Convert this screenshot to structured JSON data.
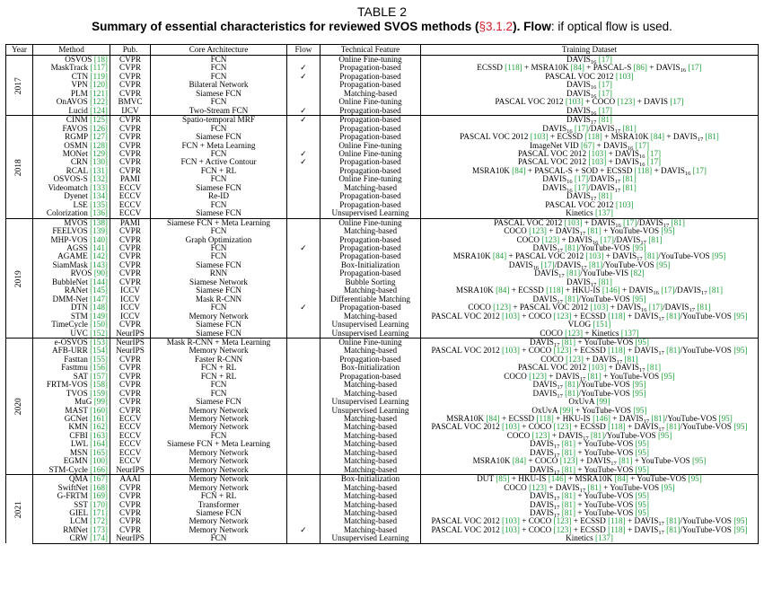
{
  "caption": {
    "table_label": "TABLE 2",
    "title_main": "Summary of essential characteristics for reviewed SVOS methods (",
    "title_ref": "§3.1.2",
    "title_end": "). ",
    "flow_label": "Flow",
    "flow_desc": ": if optical flow is used."
  },
  "headers": [
    "Year",
    "Method",
    "Pub.",
    "Core Architecture",
    "Flow",
    "Technical Feature",
    "Training Dataset"
  ],
  "groups": [
    {
      "year": "2017",
      "rows": [
        [
          "OSVOS",
          "[18]",
          "CVPR",
          "FCN",
          "",
          "Online Fine-tuning",
          "DAVIS_16 [17]"
        ],
        [
          "MaskTrack",
          "[117]",
          "CVPR",
          "FCN",
          "✓",
          "Propagation-based",
          "ECSSD [118] + MSRA10K [84] + PASCAL-S [86] + DAVIS_16 [17]"
        ],
        [
          "CTN",
          "[119]",
          "CVPR",
          "FCN",
          "✓",
          "Propagation-based",
          "PASCAL VOC 2012 [103]"
        ],
        [
          "VPN",
          "[120]",
          "CVPR",
          "Bilateral Network",
          "",
          "Propagation-based",
          "DAVIS_16 [17]"
        ],
        [
          "PLM",
          "[121]",
          "CVPR",
          "Siamese FCN",
          "",
          "Matching-based",
          "DAVIS_16 [17]"
        ],
        [
          "OnAVOS",
          "[122]",
          "BMVC",
          "FCN",
          "",
          "Online Fine-tuning",
          "PASCAL VOC 2012 [103] + COCO [123] + DAVIS [17]"
        ],
        [
          "Lucid",
          "[124]",
          "IJCV",
          "Two-Stream FCN",
          "✓",
          "Propagation-based",
          "DAVIS_16 [17]"
        ]
      ]
    },
    {
      "year": "2018",
      "rows": [
        [
          "CINM",
          "[125]",
          "CVPR",
          "Spatio-temporal MRF",
          "✓",
          "Propagation-based",
          "DAVIS_17 [81]"
        ],
        [
          "FAVOS",
          "[126]",
          "CVPR",
          "FCN",
          "",
          "Propagation-based",
          "DAVIS_16 [17]/DAVIS_17 [81]"
        ],
        [
          "RGMP",
          "[127]",
          "CVPR",
          "Siamese FCN",
          "",
          "Propagation-based",
          "PASCAL VOC 2012 [103] + ECSSD [118] + MSRA10K [84] + DAVIS_17 [81]"
        ],
        [
          "OSMN",
          "[128]",
          "CVPR",
          "FCN + Meta Learning",
          "",
          "Online Fine-tuning",
          "ImageNet VID [67] + DAVIS_16 [17]"
        ],
        [
          "MONet",
          "[129]",
          "CVPR",
          "FCN",
          "✓",
          "Online Fine-tuning",
          "PASCAL VOC 2012 [103] + DAVIS_16 [17]"
        ],
        [
          "CRN",
          "[130]",
          "CVPR",
          "FCN + Active Contour",
          "✓",
          "Propagation-based",
          "PASCAL VOC 2012 [103] + DAVIS_16 [17]"
        ],
        [
          "RCAL",
          "[131]",
          "CVPR",
          "FCN + RL",
          "",
          "Propagation-based",
          "MSRA10K [84] + PASCAL-S + SOD + ECSSD [118] + DAVIS_16 [17]"
        ],
        [
          "OSVOS-S",
          "[132]",
          "PAMI",
          "FCN",
          "",
          "Online Fine-tuning",
          "DAVIS_16 [17]/DAVIS_17 [81]"
        ],
        [
          "Videomatch",
          "[133]",
          "ECCV",
          "Siamese FCN",
          "",
          "Matching-based",
          "DAVIS_16 [17]/DAVIS_17 [81]"
        ],
        [
          "Dyenet",
          "[134]",
          "ECCV",
          "Re-ID",
          "",
          "Propagation-based",
          "DAVIS_17 [81]"
        ],
        [
          "LSE",
          "[135]",
          "ECCV",
          "FCN",
          "",
          "Propagation-based",
          "PASCAL VOC 2012 [103]"
        ],
        [
          "Colorization",
          "[136]",
          "ECCV",
          "Siamese FCN",
          "",
          "Unsupervised Learning",
          "Kinetics [137]"
        ]
      ]
    },
    {
      "year": "2019",
      "rows": [
        [
          "MVOS",
          "[138]",
          "PAMI",
          "Siamese FCN + Meta Learning",
          "",
          "Online Fine-tuning",
          "PASCAL VOC 2012 [103] + DAVIS_16 [17]/DAVIS_17 [81]"
        ],
        [
          "FEELVOS",
          "[139]",
          "CVPR",
          "FCN",
          "",
          "Matching-based",
          "COCO [123] + DAVIS_17 [81] + YouTube-VOS [95]"
        ],
        [
          "MHP-VOS",
          "[140]",
          "CVPR",
          "Graph Optimization",
          "",
          "Propagation-based",
          "COCO [123] + DAVIS_16 [17]/DAVIS_17 [81]"
        ],
        [
          "AGSS",
          "[141]",
          "CVPR",
          "FCN",
          "✓",
          "Propagation-based",
          "DAVIS_17 [81]/YouTube-VOS [95]"
        ],
        [
          "AGAME",
          "[142]",
          "CVPR",
          "FCN",
          "",
          "Propagation-based",
          "MSRA10K [84] + PASCAL VOC 2012 [103] + DAVIS_17 [81]/YouTube-VOS [95]"
        ],
        [
          "SiamMask",
          "[143]",
          "CVPR",
          "Siamese FCN",
          "",
          "Box-Initialization",
          "DAVIS_16 [17]/DAVIS_17 [81]/YouTube-VOS [95]"
        ],
        [
          "RVOS",
          "[90]",
          "CVPR",
          "RNN",
          "",
          "Propagation-based",
          "DAVIS_17 [81]/YouTube-VIS [82]"
        ],
        [
          "BubbleNet",
          "[144]",
          "CVPR",
          "Siamese Network",
          "",
          "Bubble Sorting",
          "DAVIS_17 [81]"
        ],
        [
          "RANet",
          "[145]",
          "ICCV",
          "Siamese FCN",
          "",
          "Matching-based",
          "MSRA10K [84] + ECSSD [118] + HKU-IS [146] + DAVIS_16 [17]/DAVIS_17 [81]"
        ],
        [
          "DMM-Net",
          "[147]",
          "ICCV",
          "Mask R-CNN",
          "",
          "Differentiable Matching",
          "DAVIS_17 [81]/YouTube-VOS [95]"
        ],
        [
          "DTN",
          "[148]",
          "ICCV",
          "FCN",
          "✓",
          "Propagation-based",
          "COCO [123] + PASCAL VOC 2012 [103] + DAVIS_16 [17]/DAVIS_17 [81]"
        ],
        [
          "STM",
          "[149]",
          "ICCV",
          "Memory Network",
          "",
          "Matching-based",
          "PASCAL VOC 2012 [103] + COCO [123] + ECSSD [118] + DAVIS_17 [81]/YouTube-VOS [95]"
        ],
        [
          "TimeCycle",
          "[150]",
          "CVPR",
          "Siamese FCN",
          "",
          "Unsupervised Learning",
          "VLOG [151]"
        ],
        [
          "UVC",
          "[152]",
          "NeurIPS",
          "Siamese FCN",
          "",
          "Unsupervised Learning",
          "COCO [123] + Kinetics [137]"
        ]
      ]
    },
    {
      "year": "2020",
      "rows": [
        [
          "e-OSVOS",
          "[153]",
          "NeurIPS",
          "Mask R-CNN + Meta Learning",
          "",
          "Online Fine-tuning",
          "DAVIS_17 [81] + YouTube-VOS [95]"
        ],
        [
          "AFB-URR",
          "[154]",
          "NeurIPS",
          "Memory Network",
          "",
          "Matching-based",
          "PASCAL VOC 2012 [103] + COCO [123] + ECSSD [118] + DAVIS_17 [81]/YouTube-VOS [95]"
        ],
        [
          "Fasttan",
          "[155]",
          "CVPR",
          "Faster R-CNN",
          "",
          "Propagation-based",
          "COCO [123] + DAVIS_17 [81]"
        ],
        [
          "Fasttmu",
          "[156]",
          "CVPR",
          "FCN + RL",
          "",
          "Box-Initialization",
          "PASCAL VOC 2012 [103] + DAVIS_17 [81]"
        ],
        [
          "SAT",
          "[157]",
          "CVPR",
          "FCN + RL",
          "",
          "Propagation-based",
          "COCO [123] + DAVIS_17 [81] + YouTube-VOS [95]"
        ],
        [
          "FRTM-VOS",
          "[158]",
          "CVPR",
          "FCN",
          "",
          "Matching-based",
          "DAVIS_17 [81]/YouTube-VOS [95]"
        ],
        [
          "TVOS",
          "[159]",
          "CVPR",
          "FCN",
          "",
          "Matching-based",
          "DAVIS_17 [81]/YouTube-VOS [95]"
        ],
        [
          "MuG",
          "[99]",
          "CVPR",
          "Siamese FCN",
          "",
          "Unsupervised Learning",
          "OxUvA [99]"
        ],
        [
          "MAST",
          "[160]",
          "CVPR",
          "Memory Network",
          "",
          "Unsupervised Learning",
          "OxUvA [99] + YouTube-VOS [95]"
        ],
        [
          "GCNet",
          "[161]",
          "ECCV",
          "Memory Network",
          "",
          "Matching-based",
          "MSRA10K [84] + ECSSD [118] + HKU-IS [146] + DAVIS_17 [81]/YouTube-VOS [95]"
        ],
        [
          "KMN",
          "[162]",
          "ECCV",
          "Memory Network",
          "",
          "Matching-based",
          "PASCAL VOC 2012 [103] + COCO [123] + ECSSD [118] + DAVIS_17 [81]/YouTube-VOS [95]"
        ],
        [
          "CFBI",
          "[163]",
          "ECCV",
          "FCN",
          "",
          "Matching-based",
          "COCO [123] + DAVIS_17 [81]/YouTube-VOS [95]"
        ],
        [
          "LWL",
          "[164]",
          "ECCV",
          "Siamese FCN + Meta Learning",
          "",
          "Matching-based",
          "DAVIS_17 [81] + YouTube-VOS [95]"
        ],
        [
          "MSN",
          "[165]",
          "ECCV",
          "Memory Network",
          "",
          "Matching-based",
          "DAVIS_17 [81] + YouTube-VOS [95]"
        ],
        [
          "EGMN",
          "[100]",
          "ECCV",
          "Memory Network",
          "",
          "Matching-based",
          "MSRA10K [84] + COCO [123] + DAVIS_17 [81] + YouTube-VOS [95]"
        ],
        [
          "STM-Cycle",
          "[166]",
          "NeurIPS",
          "Memory Network",
          "",
          "Matching-based",
          "DAVIS_17 [81] + YouTube-VOS [95]"
        ]
      ]
    },
    {
      "year": "2021",
      "rows": [
        [
          "QMA",
          "[167]",
          "AAAI",
          "Memory Network",
          "",
          "Box-Initialization",
          "DUT [85] + HKU-IS [146] + MSRA10K [84] + YouTube-VOS [95]"
        ],
        [
          "SwiftNet",
          "[168]",
          "CVPR",
          "Memory Network",
          "",
          "Matching-based",
          "COCO [123] + DAVIS_17 [81] + YouTube-VOS [95]"
        ],
        [
          "G-FRTM",
          "[169]",
          "CVPR",
          "FCN + RL",
          "",
          "Matching-based",
          "DAVIS_17 [81] + YouTube-VOS [95]"
        ],
        [
          "SST",
          "[170]",
          "CVPR",
          "Transformer",
          "",
          "Matching-based",
          "DAVIS_17 [81] + YouTube-VOS [95]"
        ],
        [
          "GIEL",
          "[171]",
          "CVPR",
          "Siamese FCN",
          "",
          "Matching-based",
          "DAVIS_17 [81] + YouTube-VOS [95]"
        ],
        [
          "LCM",
          "[172]",
          "CVPR",
          "Memory Network",
          "",
          "Matching-based",
          "PASCAL VOC 2012 [103] + COCO [123] + ECSSD [118] + DAVIS_17 [81]/YouTube-VOS [95]"
        ],
        [
          "RMNet",
          "[173]",
          "CVPR",
          "Memory Network",
          "✓",
          "Matching-based",
          "PASCAL VOC 2012 [103] + COCO [123] + ECSSD [118] + DAVIS_17 [81]/YouTube-VOS [95]"
        ],
        [
          "CRW",
          "[174]",
          "NeurIPS",
          "FCN",
          "",
          "Unsupervised Learning",
          "Kinetics [137]"
        ]
      ]
    }
  ]
}
